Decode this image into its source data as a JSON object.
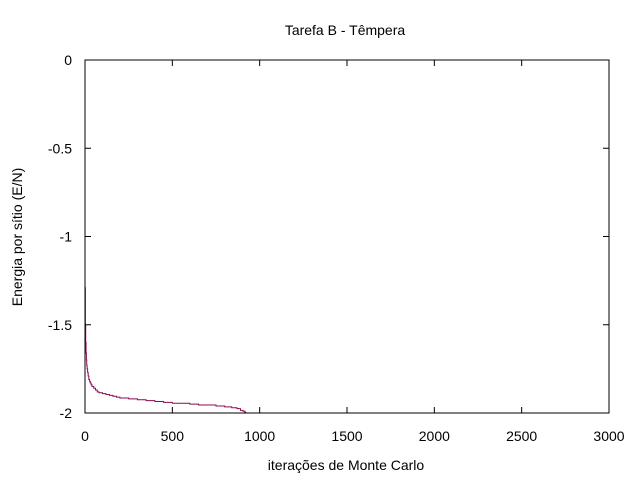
{
  "chart_data": {
    "type": "line",
    "title": "Tarefa B - Têmpera",
    "xlabel": "iterações de Monte Carlo",
    "ylabel": "Energia por sítio (E/N)",
    "xlim": [
      0,
      3000
    ],
    "ylim": [
      -2,
      0
    ],
    "x_ticks": [
      0,
      500,
      1000,
      1500,
      2000,
      2500,
      3000
    ],
    "x_tick_labels": [
      "0",
      "500",
      "1000",
      "1500",
      "2000",
      "2500",
      "3000"
    ],
    "y_ticks": [
      0,
      -0.5,
      -1,
      -1.5,
      -2
    ],
    "y_tick_labels": [
      "0",
      "-0.5",
      "-1",
      "-1.5",
      "-2"
    ],
    "grid": false,
    "legend": "none",
    "series": [
      {
        "color": "#8b0a50",
        "step": true,
        "x": [
          0,
          2,
          4,
          6,
          8,
          10,
          12,
          15,
          18,
          22,
          26,
          30,
          35,
          40,
          50,
          60,
          70,
          80,
          100,
          120,
          140,
          160,
          180,
          200,
          250,
          300,
          350,
          400,
          450,
          500,
          550,
          600,
          650,
          700,
          750,
          800,
          840,
          870,
          890,
          905,
          915,
          920
        ],
        "y": [
          -1.29,
          -1.5,
          -1.6,
          -1.66,
          -1.7,
          -1.73,
          -1.75,
          -1.77,
          -1.79,
          -1.81,
          -1.82,
          -1.83,
          -1.84,
          -1.85,
          -1.86,
          -1.87,
          -1.88,
          -1.885,
          -1.89,
          -1.895,
          -1.9,
          -1.905,
          -1.91,
          -1.915,
          -1.92,
          -1.925,
          -1.93,
          -1.935,
          -1.94,
          -1.945,
          -1.945,
          -1.95,
          -1.955,
          -1.955,
          -1.96,
          -1.965,
          -1.97,
          -1.975,
          -1.985,
          -1.99,
          -1.995,
          -2.0
        ]
      }
    ]
  }
}
